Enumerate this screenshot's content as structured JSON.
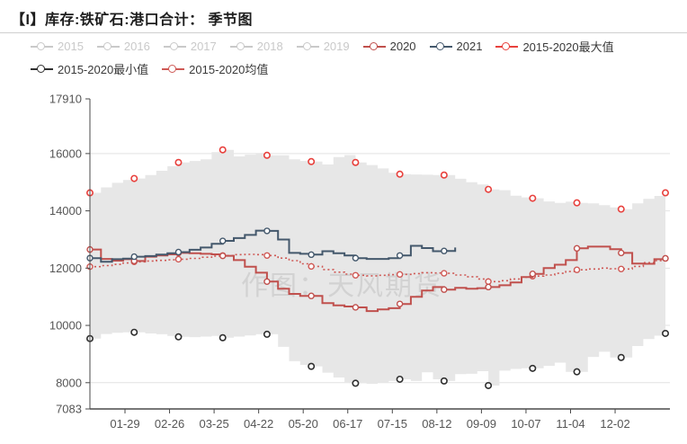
{
  "title": "【I】库存:铁矿石:港口合计： 季节图",
  "watermark": "作图：天风期货",
  "legend": {
    "items": [
      {
        "label": "2015",
        "color": "#c9c9c9",
        "muted": true
      },
      {
        "label": "2016",
        "color": "#c9c9c9",
        "muted": true
      },
      {
        "label": "2017",
        "color": "#c9c9c9",
        "muted": true
      },
      {
        "label": "2018",
        "color": "#c9c9c9",
        "muted": true
      },
      {
        "label": "2019",
        "color": "#c9c9c9",
        "muted": true
      },
      {
        "label": "2020",
        "color": "#c0504d",
        "muted": false
      },
      {
        "label": "2021",
        "color": "#44586c",
        "muted": false
      },
      {
        "label": "2015-2020最大值",
        "color": "#e8413d",
        "muted": false
      },
      {
        "label": "2015-2020最小值",
        "color": "#2f2f2f",
        "muted": false
      },
      {
        "label": "2015-2020均值",
        "color": "#cf5955",
        "muted": false
      }
    ]
  },
  "chart_data": {
    "type": "line",
    "title": "【I】库存:铁矿石:港口合计： 季节图",
    "xlabel": "",
    "ylabel": "",
    "x_tick_labels": [
      "01-29",
      "02-26",
      "03-25",
      "04-22",
      "05-20",
      "06-17",
      "07-15",
      "08-12",
      "09-09",
      "10-07",
      "11-04",
      "12-02"
    ],
    "y_ticks": [
      7083,
      8000,
      10000,
      12000,
      14000,
      16000,
      17910
    ],
    "ylim": [
      7083,
      17910
    ],
    "grid": true,
    "legend_position": "top",
    "weeks": 53,
    "marker_weeks": [
      1,
      5,
      9,
      13,
      17,
      21,
      25,
      29,
      33,
      37,
      41,
      45,
      49,
      53
    ],
    "band": {
      "name": "2015-2020范围",
      "fill": "#e7e7e7",
      "top": [
        14630,
        14820,
        14980,
        15080,
        15130,
        15250,
        15400,
        15560,
        15690,
        15740,
        15800,
        16050,
        16130,
        15900,
        15960,
        16020,
        15940,
        15940,
        15800,
        15740,
        15720,
        15620,
        15880,
        15950,
        15690,
        15600,
        15480,
        15330,
        15280,
        15270,
        15260,
        15250,
        15250,
        15120,
        15000,
        14920,
        14750,
        14720,
        14530,
        14470,
        14440,
        14330,
        14280,
        14320,
        14280,
        14260,
        14200,
        14120,
        14060,
        14260,
        14420,
        14520,
        14630
      ],
      "bottom": [
        9540,
        9700,
        9740,
        9760,
        9760,
        9720,
        9690,
        9630,
        9600,
        9590,
        9610,
        9630,
        9570,
        9610,
        9650,
        9690,
        9690,
        9250,
        8750,
        8620,
        8570,
        8350,
        8180,
        8020,
        7980,
        7960,
        8000,
        8060,
        8120,
        8060,
        8360,
        8120,
        8060,
        8300,
        8310,
        8400,
        7900,
        8420,
        8480,
        8500,
        8500,
        8590,
        8700,
        8380,
        8380,
        8900,
        9080,
        8880,
        8880,
        9280,
        9520,
        9640,
        9720
      ]
    },
    "series": [
      {
        "name": "2015-2020均值",
        "color": "#cf5955",
        "style": "dotted",
        "values": [
          12050,
          12090,
          12130,
          12180,
          12220,
          12250,
          12270,
          12290,
          12310,
          12340,
          12380,
          12420,
          12440,
          12470,
          12480,
          12470,
          12440,
          12350,
          12260,
          12150,
          12060,
          11950,
          11860,
          11790,
          11750,
          11730,
          11750,
          11770,
          11780,
          11810,
          11840,
          11830,
          11820,
          11760,
          11700,
          11620,
          11530,
          11560,
          11620,
          11680,
          11720,
          11760,
          11820,
          11880,
          11940,
          11970,
          12000,
          11980,
          11970,
          12060,
          12190,
          12260,
          12340
        ]
      },
      {
        "name": "2020",
        "color": "#c0504d",
        "style": "solid",
        "values": [
          12650,
          12320,
          12260,
          12310,
          12250,
          12400,
          12440,
          12480,
          12530,
          12520,
          12500,
          12480,
          12430,
          12280,
          12050,
          11840,
          11530,
          11280,
          11100,
          11030,
          11030,
          10780,
          10700,
          10660,
          10630,
          10500,
          10560,
          10600,
          10750,
          11000,
          11220,
          11340,
          11250,
          11310,
          11280,
          11300,
          11340,
          11400,
          11500,
          11690,
          11800,
          12000,
          12120,
          12280,
          12690,
          12750,
          12750,
          12660,
          12530,
          12160,
          12150,
          12310,
          12340
        ]
      },
      {
        "name": "2021",
        "color": "#44586c",
        "style": "solid",
        "values": [
          12350,
          12220,
          12310,
          12330,
          12400,
          12420,
          12470,
          12520,
          12560,
          12640,
          12720,
          12850,
          12950,
          13050,
          13160,
          13310,
          13300,
          13000,
          12530,
          12500,
          12470,
          12590,
          12520,
          12440,
          12350,
          12320,
          12320,
          12350,
          12440,
          12780,
          12700,
          12590,
          12600,
          12720
        ]
      },
      {
        "name": "2015-2020最大值",
        "color": "#e8413d",
        "style": "markers",
        "weeks": [
          1,
          5,
          9,
          13,
          17,
          21,
          25,
          29,
          33,
          37,
          41,
          45,
          49,
          53
        ],
        "values": [
          14630,
          15130,
          15690,
          16130,
          15940,
          15720,
          15690,
          15280,
          15250,
          14750,
          14440,
          14280,
          14060,
          14630
        ]
      },
      {
        "name": "2015-2020最小值",
        "color": "#2f2f2f",
        "style": "markers",
        "weeks": [
          1,
          5,
          9,
          13,
          17,
          21,
          25,
          29,
          33,
          37,
          41,
          45,
          49,
          53
        ],
        "values": [
          9540,
          9760,
          9600,
          9570,
          9690,
          8570,
          7980,
          8120,
          8060,
          7900,
          8500,
          8380,
          8880,
          9720
        ]
      }
    ]
  }
}
